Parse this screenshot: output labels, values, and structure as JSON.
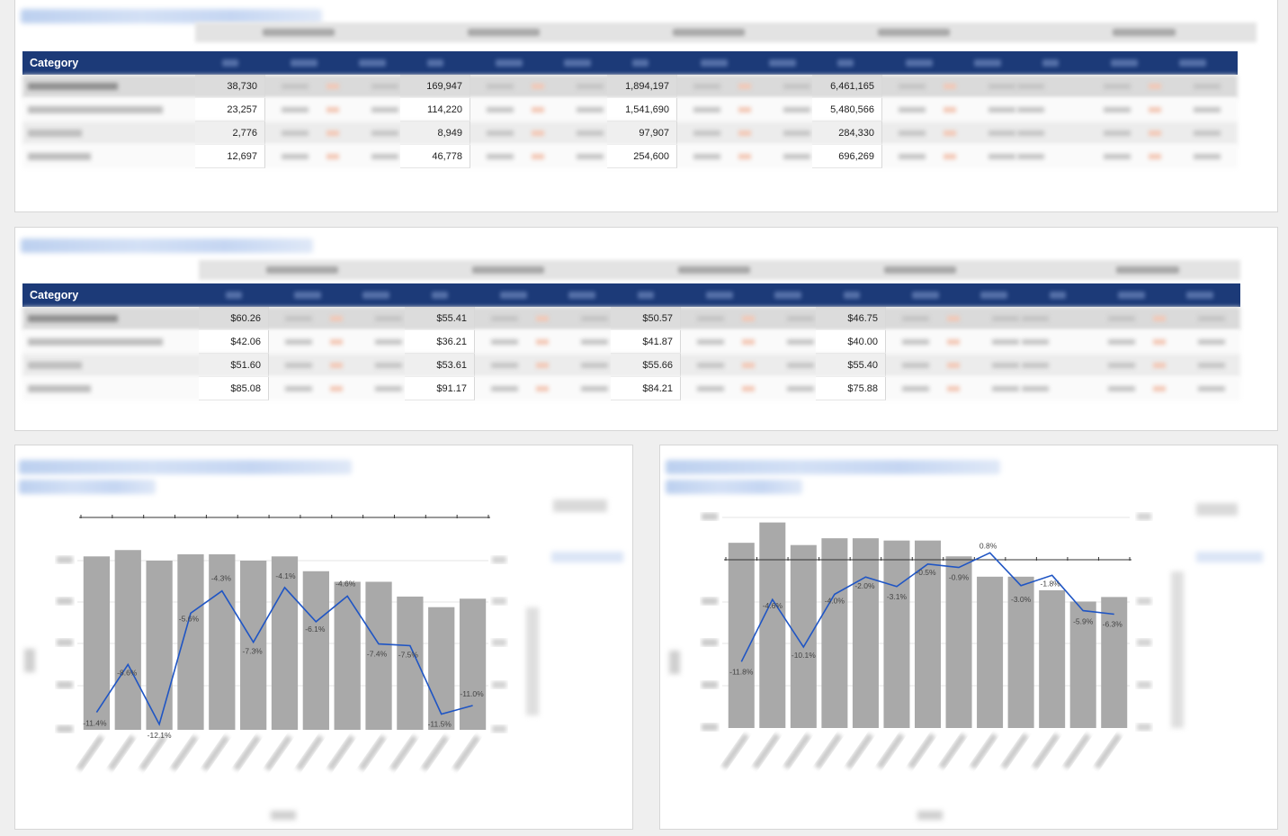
{
  "tables": [
    {
      "header_label": "Category",
      "rows": [
        [
          "38,730",
          "169,947",
          "1,894,197",
          "6,461,165"
        ],
        [
          "23,257",
          "114,220",
          "1,541,690",
          "5,480,566"
        ],
        [
          "2,776",
          "8,949",
          "97,907",
          "284,330"
        ],
        [
          "12,697",
          "46,778",
          "254,600",
          "696,269"
        ]
      ]
    },
    {
      "header_label": "Category",
      "rows": [
        [
          "$60.26",
          "$55.41",
          "$50.57",
          "$46.75"
        ],
        [
          "$42.06",
          "$36.21",
          "$41.87",
          "$40.00"
        ],
        [
          "$51.60",
          "$53.61",
          "$55.66",
          "$55.40"
        ],
        [
          "$85.08",
          "$91.17",
          "$84.21",
          "$75.88"
        ]
      ]
    }
  ],
  "chart_data": [
    {
      "type": "bar",
      "bar_color": "#a9a9a9",
      "line_color": "#1f55c4",
      "bar_values": [
        82,
        85,
        80,
        83,
        83,
        80,
        82,
        75,
        70,
        70,
        63,
        58,
        62
      ],
      "line_labels": [
        "-11.4%",
        "-8.6%",
        "-12.1%",
        "-5.6%",
        "-4.3%",
        "-7.3%",
        "-4.1%",
        "-6.1%",
        "-4.6%",
        "-7.4%",
        "-7.5%",
        "-11.5%",
        "-11.0%"
      ],
      "line_values": [
        -11.4,
        -8.6,
        -12.1,
        -5.6,
        -4.3,
        -7.3,
        -4.1,
        -6.1,
        -4.6,
        -7.4,
        -7.5,
        -11.5,
        -11.0
      ]
    },
    {
      "type": "bar",
      "bar_color": "#a9a9a9",
      "line_color": "#1f55c4",
      "bar_values": [
        82,
        91,
        81,
        84,
        84,
        83,
        83,
        76,
        67,
        67,
        61,
        56,
        58
      ],
      "line_labels": [
        "-11.8%",
        "-4.6%",
        "-10.1%",
        "-4.0%",
        "-2.0%",
        "-3.1%",
        "-0.5%",
        "-0.9%",
        "0.8%",
        "-3.0%",
        "-1.8%",
        "-5.9%",
        "-6.3%"
      ],
      "line_values": [
        -11.8,
        -4.6,
        -10.1,
        -4.0,
        -2.0,
        -3.1,
        -0.5,
        -0.9,
        0.8,
        -3.0,
        -1.8,
        -5.9,
        -6.3
      ]
    }
  ]
}
